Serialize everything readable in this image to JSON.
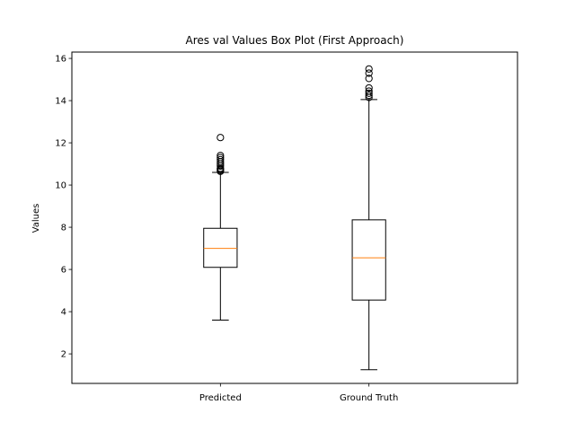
{
  "chart_data": {
    "type": "box",
    "title": "Ares val Values Box Plot (First Approach)",
    "xlabel": "",
    "ylabel": "Values",
    "ylim": [
      0.6,
      16.3
    ],
    "yticks": [
      2,
      4,
      6,
      8,
      10,
      12,
      14,
      16
    ],
    "categories": [
      "Predicted",
      "Ground Truth"
    ],
    "boxes": [
      {
        "label": "Predicted",
        "whisker_low": 3.6,
        "q1": 6.1,
        "median": 7.0,
        "q3": 7.95,
        "whisker_high": 10.6,
        "outliers": [
          10.65,
          10.7,
          10.75,
          10.8,
          10.9,
          11.0,
          11.1,
          11.2,
          11.3,
          11.4,
          12.25
        ]
      },
      {
        "label": "Ground Truth",
        "whisker_low": 1.25,
        "q1": 4.55,
        "median": 6.55,
        "q3": 8.35,
        "whisker_high": 14.05,
        "outliers": [
          14.15,
          14.25,
          14.35,
          14.45,
          14.6,
          15.05,
          15.3,
          15.5
        ]
      }
    ],
    "colors": {
      "box": "#000000",
      "median": "#ff7f0e",
      "background": "#ffffff"
    },
    "grid": false
  }
}
